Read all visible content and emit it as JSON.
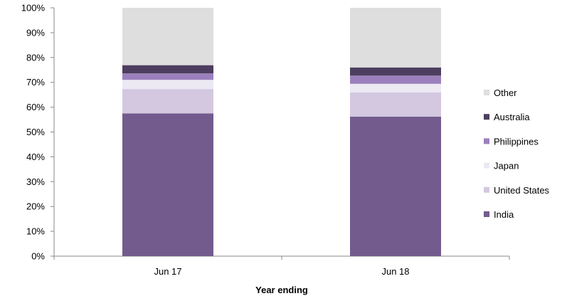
{
  "chart_data": {
    "type": "bar",
    "stacked": true,
    "normalized_percent": true,
    "categories": [
      "Jun 17",
      "Jun 18"
    ],
    "xlabel": "Year ending",
    "ylabel": "",
    "ylim": [
      0,
      100
    ],
    "y_ticks": [
      "0%",
      "10%",
      "20%",
      "30%",
      "40%",
      "50%",
      "60%",
      "70%",
      "80%",
      "90%",
      "100%"
    ],
    "grid": false,
    "legend_position": "right",
    "series": [
      {
        "name": "India",
        "color": "#735b8e",
        "values": [
          57.5,
          56.2
        ]
      },
      {
        "name": "United States",
        "color": "#d3c8e0",
        "values": [
          9.8,
          9.8
        ]
      },
      {
        "name": "Japan",
        "color": "#ede9f3",
        "values": [
          3.7,
          3.4
        ]
      },
      {
        "name": "Philippines",
        "color": "#9c80bd",
        "values": [
          2.6,
          3.3
        ]
      },
      {
        "name": "Australia",
        "color": "#4d3e5f",
        "values": [
          3.3,
          3.3
        ]
      },
      {
        "name": "Other",
        "color": "#dedede",
        "values": [
          23.1,
          24.0
        ]
      }
    ]
  }
}
